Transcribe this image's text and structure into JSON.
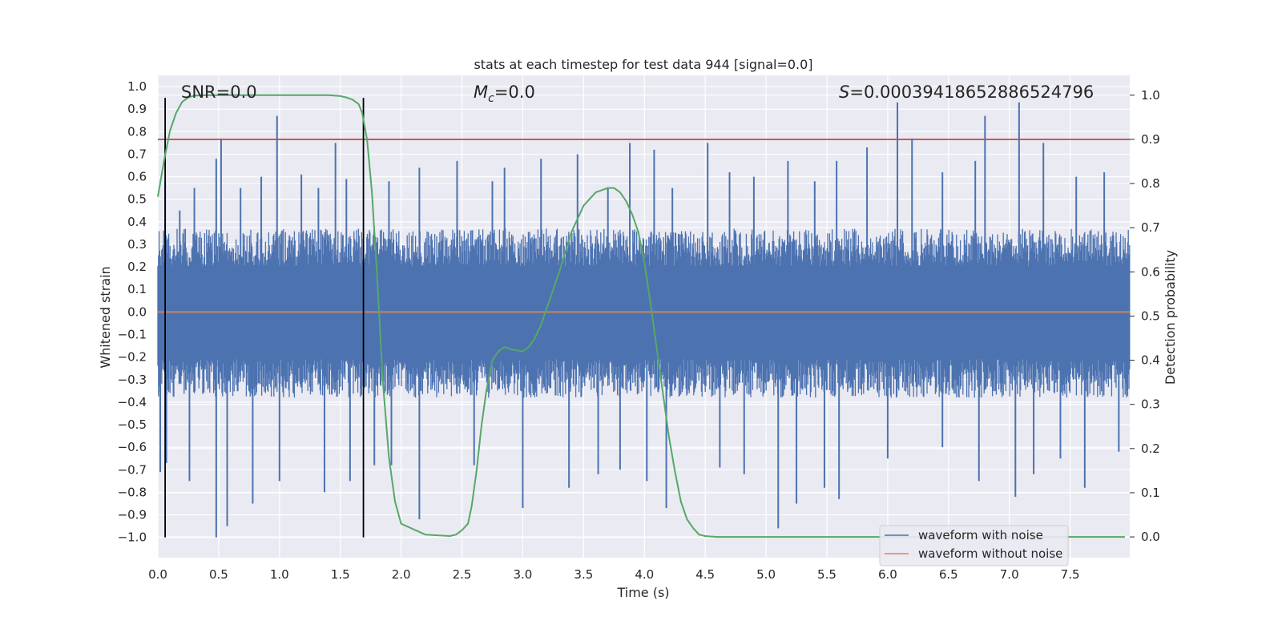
{
  "chart_data": {
    "type": "line",
    "title": "stats at each timestep for test data 944 [signal=0.0]",
    "xlabel": "Time (s)",
    "ylabel_left": "Whitened strain",
    "ylabel_right": "Detection probability",
    "xlim": [
      0.0,
      7.99
    ],
    "ylim_left": [
      -1.09,
      1.05
    ],
    "ylim_right": [
      -0.047,
      1.045
    ],
    "grid": true,
    "x_ticks": [
      0.0,
      0.5,
      1.0,
      1.5,
      2.0,
      2.5,
      3.0,
      3.5,
      4.0,
      4.5,
      5.0,
      5.5,
      6.0,
      6.5,
      7.0,
      7.5
    ],
    "x_tick_labels": [
      "0.0",
      "0.5",
      "1.0",
      "1.5",
      "2.0",
      "2.5",
      "3.0",
      "3.5",
      "4.0",
      "4.5",
      "5.0",
      "5.5",
      "6.0",
      "6.5",
      "7.0",
      "7.5"
    ],
    "y_left_ticks": [
      1.0,
      0.9,
      0.8,
      0.7,
      0.6,
      0.5,
      0.4,
      0.3,
      0.2,
      0.1,
      0.0,
      -0.1,
      -0.2,
      -0.3,
      -0.4,
      -0.5,
      -0.6,
      -0.7,
      -0.8,
      -0.9,
      -1.0
    ],
    "y_left_tick_labels": [
      "1.0",
      "0.9",
      "0.8",
      "0.7",
      "0.6",
      "0.5",
      "0.4",
      "0.3",
      "0.2",
      "0.1",
      "0.0",
      "−0.1",
      "−0.2",
      "−0.3",
      "−0.4",
      "−0.5",
      "−0.6",
      "−0.7",
      "−0.8",
      "−0.9",
      "−1.0"
    ],
    "y_right_ticks": [
      1.0,
      0.9,
      0.8,
      0.7,
      0.6,
      0.5,
      0.4,
      0.3,
      0.2,
      0.1,
      0.0
    ],
    "y_right_tick_labels": [
      "1.0",
      "0.9",
      "0.8",
      "0.7",
      "0.6",
      "0.5",
      "0.4",
      "0.3",
      "0.2",
      "0.1",
      "0.0"
    ],
    "annotations": {
      "snr": "SNR=0.0",
      "mc_symbol": "M",
      "mc_sub": "c",
      "mc_value": "=0.0",
      "s_symbol": "S",
      "s_value": "=0.0003941865288652479​6"
    },
    "series": [
      {
        "name": "waveform with noise",
        "axis": "left",
        "color": "#4c72b0",
        "kind": "noise-band",
        "duration_s": 8.0,
        "typical_range": [
          -0.38,
          0.37
        ],
        "spikes_up": [
          [
            0.06,
            0.58
          ],
          [
            0.18,
            0.45
          ],
          [
            0.3,
            0.55
          ],
          [
            0.48,
            0.68
          ],
          [
            0.52,
            0.77
          ],
          [
            0.68,
            0.55
          ],
          [
            0.85,
            0.6
          ],
          [
            0.98,
            0.87
          ],
          [
            1.18,
            0.61
          ],
          [
            1.32,
            0.55
          ],
          [
            1.46,
            0.75
          ],
          [
            1.55,
            0.59
          ],
          [
            1.9,
            0.58
          ],
          [
            2.15,
            0.64
          ],
          [
            2.46,
            0.67
          ],
          [
            2.75,
            0.58
          ],
          [
            2.85,
            0.64
          ],
          [
            3.15,
            0.68
          ],
          [
            3.45,
            0.7
          ],
          [
            3.7,
            0.55
          ],
          [
            3.88,
            0.75
          ],
          [
            4.08,
            0.72
          ],
          [
            4.23,
            0.55
          ],
          [
            4.52,
            0.75
          ],
          [
            4.7,
            0.62
          ],
          [
            4.9,
            0.6
          ],
          [
            5.18,
            0.67
          ],
          [
            5.4,
            0.58
          ],
          [
            5.58,
            0.67
          ],
          [
            5.83,
            0.73
          ],
          [
            6.08,
            0.93
          ],
          [
            6.2,
            0.77
          ],
          [
            6.45,
            0.62
          ],
          [
            6.72,
            0.67
          ],
          [
            6.8,
            0.87
          ],
          [
            7.08,
            0.93
          ],
          [
            7.28,
            0.75
          ],
          [
            7.55,
            0.6
          ],
          [
            7.78,
            0.62
          ]
        ],
        "spikes_down": [
          [
            0.02,
            -0.71
          ],
          [
            0.07,
            -0.67
          ],
          [
            0.26,
            -0.75
          ],
          [
            0.48,
            -1.0
          ],
          [
            0.57,
            -0.95
          ],
          [
            0.78,
            -0.85
          ],
          [
            1.0,
            -0.75
          ],
          [
            1.37,
            -0.8
          ],
          [
            1.58,
            -0.75
          ],
          [
            1.78,
            -0.68
          ],
          [
            1.92,
            -0.68
          ],
          [
            2.15,
            -0.92
          ],
          [
            2.6,
            -0.68
          ],
          [
            3.0,
            -0.87
          ],
          [
            3.38,
            -0.78
          ],
          [
            3.62,
            -0.72
          ],
          [
            3.8,
            -0.7
          ],
          [
            4.02,
            -0.75
          ],
          [
            4.18,
            -0.87
          ],
          [
            4.62,
            -0.69
          ],
          [
            4.82,
            -0.72
          ],
          [
            5.1,
            -0.96
          ],
          [
            5.25,
            -0.85
          ],
          [
            5.48,
            -0.78
          ],
          [
            5.6,
            -0.83
          ],
          [
            6.0,
            -0.65
          ],
          [
            6.45,
            -0.6
          ],
          [
            6.75,
            -0.75
          ],
          [
            7.05,
            -0.82
          ],
          [
            7.2,
            -0.72
          ],
          [
            7.42,
            -0.65
          ],
          [
            7.62,
            -0.78
          ],
          [
            7.9,
            -0.62
          ]
        ]
      },
      {
        "name": "waveform without noise",
        "axis": "left",
        "color": "#dd8452",
        "x": [
          0.0,
          7.99
        ],
        "y": [
          0.0,
          0.0
        ]
      },
      {
        "axis": "right",
        "color": "#55a868",
        "x": [
          0.0,
          0.05,
          0.1,
          0.15,
          0.2,
          0.25,
          0.3,
          0.4,
          0.5,
          0.7,
          1.0,
          1.2,
          1.4,
          1.5,
          1.55,
          1.6,
          1.65,
          1.68,
          1.72,
          1.76,
          1.8,
          1.85,
          1.9,
          1.95,
          2.0,
          2.2,
          2.4,
          2.45,
          2.5,
          2.55,
          2.58,
          2.62,
          2.66,
          2.7,
          2.75,
          2.8,
          2.85,
          2.9,
          3.0,
          3.05,
          3.1,
          3.15,
          3.2,
          3.3,
          3.4,
          3.5,
          3.6,
          3.7,
          3.75,
          3.8,
          3.85,
          3.9,
          3.95,
          4.0,
          4.05,
          4.1,
          4.15,
          4.2,
          4.25,
          4.3,
          4.35,
          4.4,
          4.45,
          4.5,
          4.6,
          5.0,
          6.0,
          7.0,
          7.95
        ],
        "y": [
          0.77,
          0.85,
          0.92,
          0.96,
          0.985,
          0.995,
          0.999,
          1.0,
          1.0,
          1.0,
          1.0,
          1.0,
          1.0,
          0.998,
          0.995,
          0.99,
          0.98,
          0.96,
          0.9,
          0.78,
          0.6,
          0.35,
          0.18,
          0.08,
          0.03,
          0.005,
          0.002,
          0.005,
          0.015,
          0.03,
          0.07,
          0.15,
          0.25,
          0.33,
          0.4,
          0.42,
          0.43,
          0.425,
          0.42,
          0.43,
          0.45,
          0.48,
          0.52,
          0.6,
          0.69,
          0.75,
          0.78,
          0.79,
          0.79,
          0.78,
          0.76,
          0.73,
          0.69,
          0.62,
          0.53,
          0.43,
          0.33,
          0.23,
          0.15,
          0.08,
          0.04,
          0.02,
          0.005,
          0.002,
          0.0,
          0.0,
          0.0,
          0.0,
          0.0
        ]
      }
    ],
    "threshold": {
      "axis": "right",
      "value": 0.9,
      "color": "#c44e52"
    },
    "vertical_markers": {
      "color": "#000000",
      "x": [
        0.06,
        1.69
      ],
      "y_range": [
        -1.0,
        0.95
      ]
    },
    "legend": {
      "placement": "lower-right",
      "entries": [
        "waveform with noise",
        "waveform without noise"
      ]
    },
    "colors": {
      "plot_bg": "#eaeaf2",
      "grid": "#ffffff"
    }
  }
}
